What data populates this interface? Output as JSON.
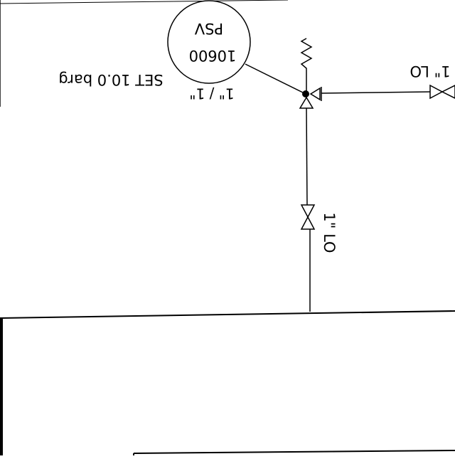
{
  "diagram": {
    "psv_bubble": {
      "tag_prefix": "PSV",
      "tag_number": "10600",
      "set_pressure": "SET 10.0 barg",
      "size": "1\" / 1\""
    },
    "valve_right": {
      "label": "1\" LO"
    },
    "valve_vertical": {
      "label": "1\" LO"
    }
  }
}
